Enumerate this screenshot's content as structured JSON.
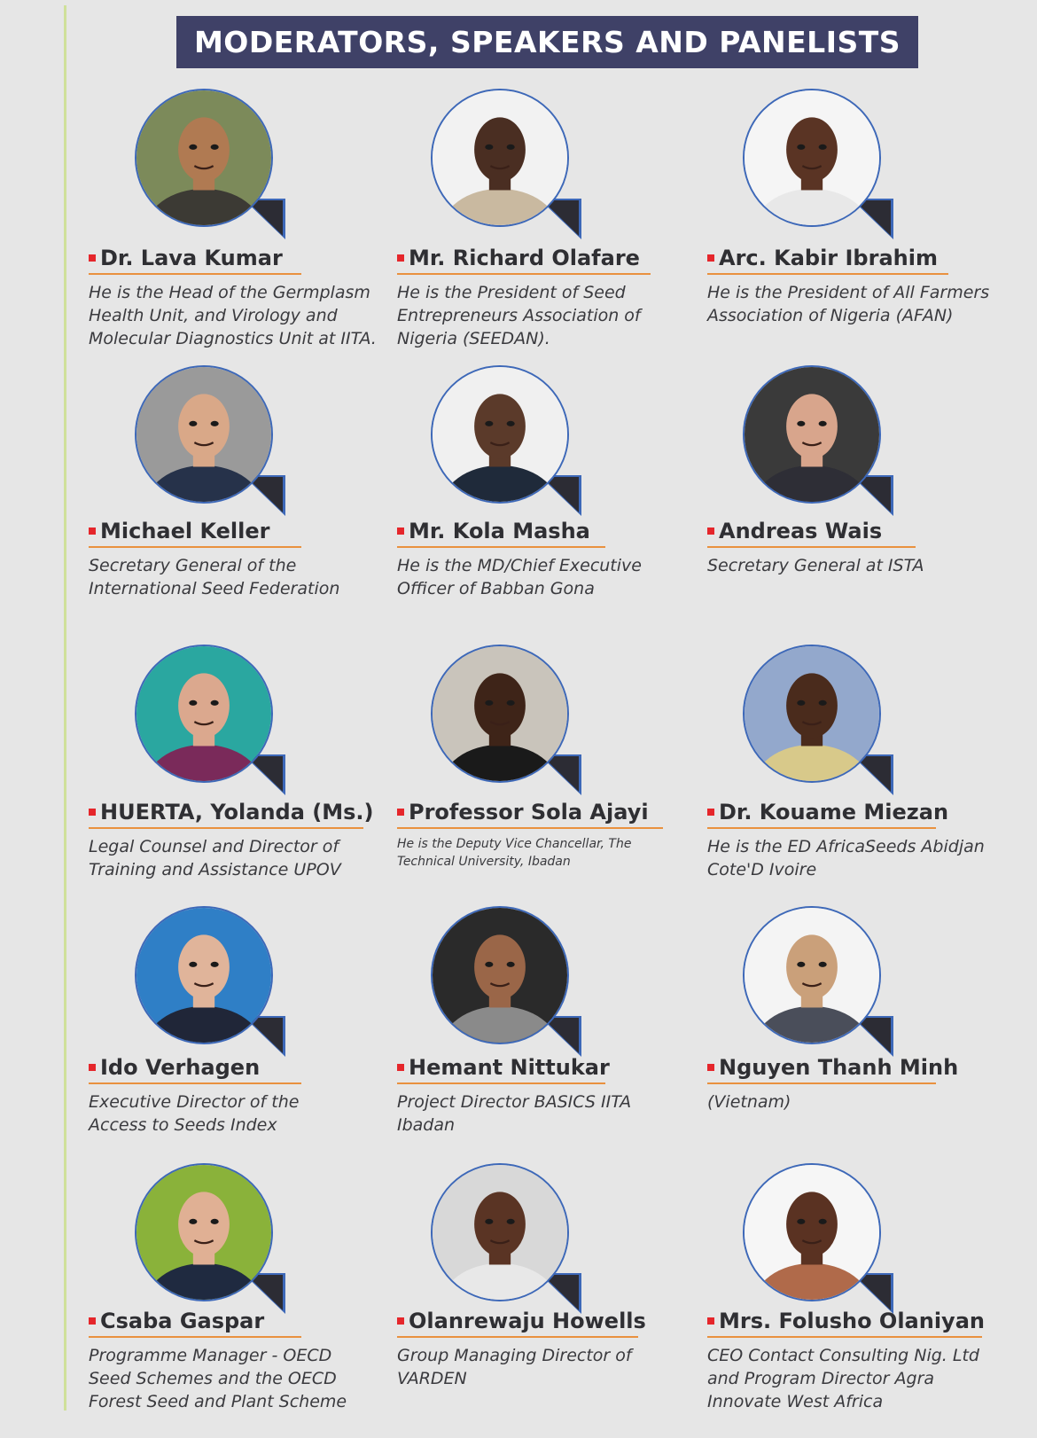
{
  "title": "MODERATORS, SPEAKERS AND PANELISTS",
  "colors": {
    "banner": "#3f4167",
    "accent_bullet": "#e5262b",
    "underline": "#e9913f",
    "bubble_border": "#3d68b8",
    "background": "#e6e6e6"
  },
  "speakers": [
    {
      "name": "Dr. Lava Kumar",
      "description": "He is the Head of the Germplasm\nHealth Unit, and Virology and\nMolecular Diagnostics Unit at IITA.",
      "bg": "#7c8a5a",
      "skin": "#b07a52",
      "shirt": "#3c3a34"
    },
    {
      "name": "Mr. Richard Olafare",
      "description": "He is the President of Seed\nEntrepreneurs Association of\nNigeria (SEEDAN).",
      "bg": "#f2f2f2",
      "skin": "#4a2e22",
      "shirt": "#c9b9a0"
    },
    {
      "name": "Arc. Kabir Ibrahim",
      "description": "He is the President of All Farmers\nAssociation of Nigeria (AFAN)",
      "bg": "#f5f5f5",
      "skin": "#5a3424",
      "shirt": "#e8e8e8"
    },
    {
      "name": "Michael Keller",
      "description": "Secretary General of the\nInternational Seed Federation",
      "bg": "#9a9a9a",
      "skin": "#d9a888",
      "shirt": "#26324a"
    },
    {
      "name": "Mr. Kola Masha",
      "description": "He is the MD/Chief Executive\nOfficer of Babban Gona",
      "bg": "#f0f0f0",
      "skin": "#5b3a2a",
      "shirt": "#1f2a3a"
    },
    {
      "name": "Andreas Wais",
      "description": "Secretary General at ISTA",
      "bg": "#3a3a3a",
      "skin": "#d8a58c",
      "shirt": "#2e2e36"
    },
    {
      "name": "HUERTA, Yolanda (Ms.)",
      "description": "Legal Counsel and Director of\nTraining and Assistance UPOV",
      "bg": "#2aa7a0",
      "skin": "#dba88e",
      "shirt": "#7a2a5a"
    },
    {
      "name": "Professor Sola Ajayi",
      "description": "He is the Deputy Vice Chancellar, The\nTechnical University, Ibadan",
      "bg": "#c9c4bb",
      "skin": "#3e2418",
      "shirt": "#1a1a1a"
    },
    {
      "name": "Dr. Kouame Miezan",
      "description": "He is the ED AfricaSeeds Abidjan\nCote'D Ivoire",
      "bg": "#93a8cc",
      "skin": "#4a2b1c",
      "shirt": "#d8c98a"
    },
    {
      "name": "Ido Verhagen",
      "description": "Executive Director of the\nAccess to Seeds Index",
      "bg": "#2f7fc6",
      "skin": "#e0b49a",
      "shirt": "#202638"
    },
    {
      "name": "Hemant Nittukar",
      "description": "Project Director BASICS IITA\nIbadan",
      "bg": "#2a2a2a",
      "skin": "#9a6648",
      "shirt": "#8a8a8a"
    },
    {
      "name": "Nguyen Thanh Minh",
      "description": "(Vietnam)",
      "bg": "#f4f4f4",
      "skin": "#caa07a",
      "shirt": "#4a4e5a"
    },
    {
      "name": "Csaba Gaspar",
      "description": "Programme Manager - OECD\nSeed Schemes and the OECD\nForest Seed and Plant Scheme",
      "bg": "#8ab23a",
      "skin": "#e0b094",
      "shirt": "#1f2a40"
    },
    {
      "name": "Olanrewaju Howells",
      "description": "Group Managing Director of\nVARDEN",
      "bg": "#d8d8d8",
      "skin": "#5a3424",
      "shirt": "#e8e8e8"
    },
    {
      "name": "Mrs. Folusho Olaniyan",
      "description": "CEO Contact Consulting Nig. Ltd\nand Program Director Agra\nInnovate West Africa",
      "bg": "#f6f6f6",
      "skin": "#5a3222",
      "shirt": "#b06a4a"
    }
  ]
}
